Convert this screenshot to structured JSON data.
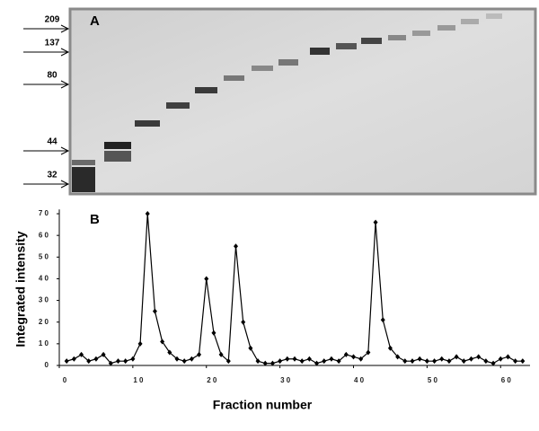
{
  "gel": {
    "label": "A",
    "markers": [
      "209",
      "137",
      "80",
      "44",
      "32"
    ]
  },
  "chart_data": {
    "type": "line",
    "panel_label": "B",
    "x_label": "Fraction number",
    "y_label": "Integrated intensity",
    "xlim": [
      0,
      64
    ],
    "ylim": [
      0,
      72
    ],
    "xticks": [
      0,
      {
        "value": 10,
        "label": "1 0"
      },
      {
        "value": 20,
        "label": "2 0"
      },
      {
        "value": 30,
        "label": "3 0"
      },
      {
        "value": 40,
        "label": "4 0"
      },
      {
        "value": 50,
        "label": "5 0"
      },
      {
        "value": 60,
        "label": "6 0"
      }
    ],
    "yticks": [
      0,
      {
        "value": 10,
        "label": "1 0"
      },
      {
        "value": 20,
        "label": "2 0"
      },
      {
        "value": 30,
        "label": "3 0"
      },
      {
        "value": 40,
        "label": "4 0"
      },
      {
        "value": 50,
        "label": "5 0"
      },
      {
        "value": 60,
        "label": "6 0"
      },
      {
        "value": 70,
        "label": "7 0"
      }
    ],
    "color": "#000000",
    "marker": "diamond",
    "x": [
      1,
      2,
      3,
      4,
      5,
      6,
      7,
      8,
      9,
      10,
      11,
      12,
      13,
      14,
      15,
      16,
      17,
      18,
      19,
      20,
      21,
      22,
      23,
      24,
      25,
      26,
      27,
      28,
      29,
      30,
      31,
      32,
      33,
      34,
      35,
      36,
      37,
      38,
      39,
      40,
      41,
      42,
      43,
      44,
      45,
      46,
      47,
      48,
      49,
      50,
      51,
      52,
      53,
      54,
      55,
      56,
      57,
      58,
      59,
      60,
      61,
      62,
      63
    ],
    "values": [
      2,
      3,
      5,
      2,
      3,
      5,
      1,
      2,
      2,
      3,
      10,
      70,
      25,
      11,
      6,
      3,
      2,
      3,
      5,
      40,
      15,
      5,
      2,
      55,
      20,
      8,
      2,
      1,
      1,
      2,
      3,
      3,
      2,
      3,
      1,
      2,
      3,
      2,
      5,
      4,
      3,
      6,
      66,
      21,
      8,
      4,
      2,
      2,
      3,
      2,
      2,
      3,
      2,
      4,
      2,
      3,
      4,
      2,
      1,
      3,
      4,
      2,
      2
    ]
  }
}
